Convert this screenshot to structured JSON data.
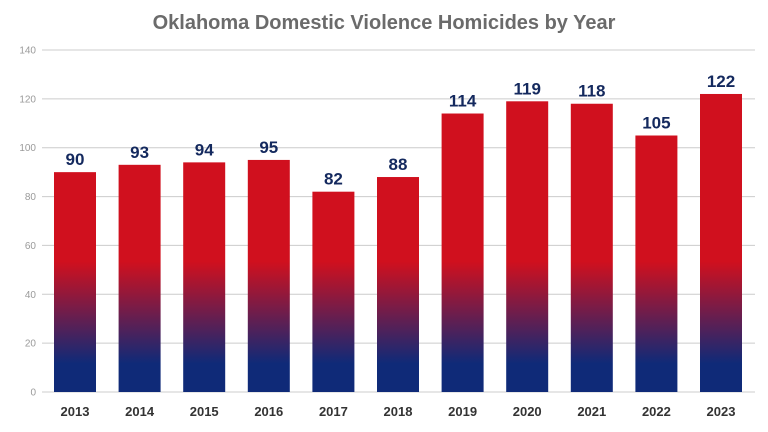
{
  "chart_data": {
    "type": "bar",
    "title": "Oklahoma Domestic Violence Homicides by Year",
    "xlabel": "",
    "ylabel": "",
    "categories": [
      "2013",
      "2014",
      "2015",
      "2016",
      "2017",
      "2018",
      "2019",
      "2020",
      "2021",
      "2022",
      "2023"
    ],
    "values": [
      90,
      93,
      94,
      95,
      82,
      88,
      114,
      119,
      118,
      105,
      122
    ],
    "ylim": [
      0,
      140
    ],
    "yticks": [
      0,
      20,
      40,
      60,
      80,
      100,
      120,
      140
    ],
    "grid": true,
    "legend": "none"
  },
  "colors": {
    "bar_top": "#d0101e",
    "bar_bottom": "#0f2a78",
    "data_label": "#14295e",
    "grid": "#cccccc",
    "title": "#6b6b6b"
  }
}
